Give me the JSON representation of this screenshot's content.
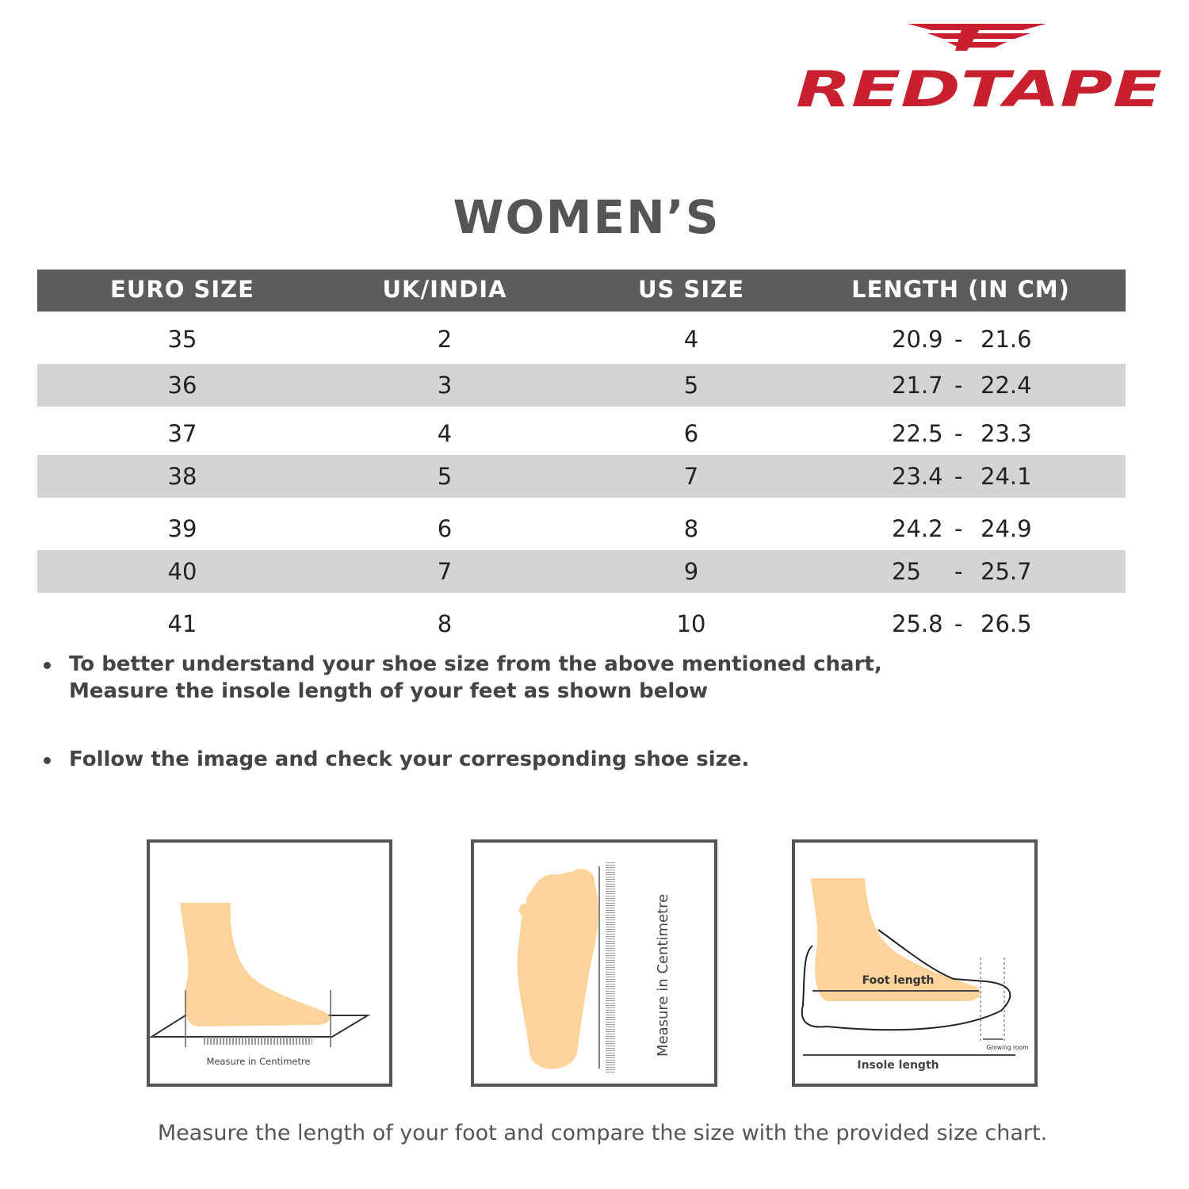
{
  "brand": {
    "name": "REDTAPE",
    "color": "#c8202f"
  },
  "title": "WOMEN’S",
  "table": {
    "headers": [
      "EURO SIZE",
      "UK/INDIA",
      "US SIZE",
      "LENGTH (IN CM)"
    ],
    "header_bg": "#5e5b5c",
    "rows": [
      {
        "euro": "35",
        "uk": "2",
        "us": "4",
        "min": "20.9",
        "sep": "-",
        "max": "21.6"
      },
      {
        "euro": "36",
        "uk": "3",
        "us": "5",
        "min": "21.7",
        "sep": "-",
        "max": "22.4"
      },
      {
        "euro": "37",
        "uk": "4",
        "us": "6",
        "min": "22.5",
        "sep": "-",
        "max": "23.3"
      },
      {
        "euro": "38",
        "uk": "5",
        "us": "7",
        "min": "23.4",
        "sep": "-",
        "max": "24.1"
      },
      {
        "euro": "39",
        "uk": "6",
        "us": "8",
        "min": "24.2",
        "sep": "-",
        "max": "24.9"
      },
      {
        "euro": "40",
        "uk": "7",
        "us": "9",
        "min": "25",
        "sep": "-",
        "max": "25.7"
      },
      {
        "euro": "41",
        "uk": "8",
        "us": "10",
        "min": "25.8",
        "sep": "-",
        "max": "26.5"
      }
    ]
  },
  "notes": [
    {
      "line1": "To better understand your shoe size from the above mentioned chart,",
      "line2": "Measure the insole length of your feet as shown below"
    },
    {
      "line1": "Follow the image and check your corresponding shoe size."
    }
  ],
  "illustrations": {
    "side_foot_caption": "Measure in Centimetre",
    "sole_caption": "Measure in Centimetre",
    "shoe": {
      "foot_length": "Foot length",
      "growing_room": "Growing room",
      "insole_length": "Insole length"
    }
  },
  "footer": "Measure the length of your foot and compare the size with the provided size chart."
}
